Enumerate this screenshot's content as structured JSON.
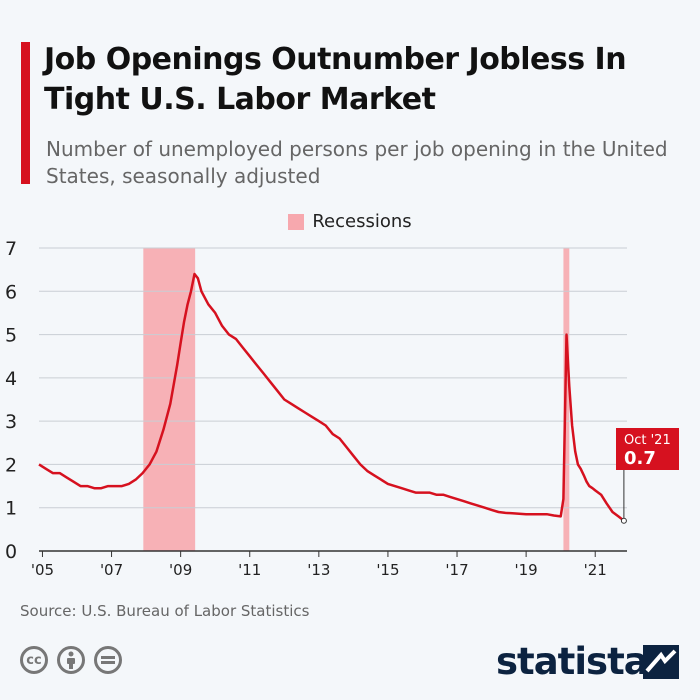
{
  "chart_data": {
    "type": "line",
    "title": "Job Openings Outnumber Jobless In Tight U.S. Labor Market",
    "subtitle": "Number of unemployed persons per job opening in the United States, seasonally adjusted",
    "legend": {
      "label": "Recessions",
      "placement": "top-center"
    },
    "yticks": [
      0,
      1,
      2,
      3,
      4,
      5,
      6,
      7
    ],
    "ylim": [
      0,
      7
    ],
    "xlim": [
      2004.9,
      2021.92
    ],
    "xticks": [
      {
        "value": 2005,
        "label": "'05"
      },
      {
        "value": 2007,
        "label": "'07"
      },
      {
        "value": 2009,
        "label": "'09"
      },
      {
        "value": 2011,
        "label": "'11"
      },
      {
        "value": 2013,
        "label": "'13"
      },
      {
        "value": 2015,
        "label": "'15"
      },
      {
        "value": 2017,
        "label": "'17"
      },
      {
        "value": 2019,
        "label": "'19"
      },
      {
        "value": 2021,
        "label": "'21"
      }
    ],
    "recessions": [
      {
        "start": 2007.92,
        "end": 2009.42
      },
      {
        "start": 2020.08,
        "end": 2020.25
      }
    ],
    "series": [
      {
        "color": "#d6111f",
        "x": [
          2004.9,
          2005.1,
          2005.3,
          2005.5,
          2005.7,
          2005.9,
          2006.1,
          2006.3,
          2006.5,
          2006.7,
          2006.9,
          2007.1,
          2007.3,
          2007.5,
          2007.7,
          2007.9,
          2008.1,
          2008.3,
          2008.5,
          2008.7,
          2008.9,
          2009.0,
          2009.1,
          2009.2,
          2009.3,
          2009.4,
          2009.5,
          2009.6,
          2009.8,
          2010.0,
          2010.2,
          2010.4,
          2010.6,
          2010.8,
          2011.0,
          2011.2,
          2011.4,
          2011.6,
          2011.8,
          2012.0,
          2012.2,
          2012.4,
          2012.6,
          2012.8,
          2013.0,
          2013.2,
          2013.4,
          2013.6,
          2013.8,
          2014.0,
          2014.2,
          2014.4,
          2014.6,
          2014.8,
          2015.0,
          2015.2,
          2015.4,
          2015.6,
          2015.8,
          2016.0,
          2016.2,
          2016.4,
          2016.6,
          2016.8,
          2017.0,
          2017.2,
          2017.4,
          2017.6,
          2017.8,
          2018.0,
          2018.2,
          2018.4,
          2018.6,
          2018.8,
          2019.0,
          2019.2,
          2019.4,
          2019.6,
          2019.8,
          2020.0,
          2020.08,
          2020.17,
          2020.25,
          2020.33,
          2020.42,
          2020.5,
          2020.58,
          2020.67,
          2020.75,
          2020.83,
          2020.92,
          2021.0,
          2021.17,
          2021.33,
          2021.5,
          2021.67,
          2021.83
        ],
        "y": [
          2.0,
          1.9,
          1.8,
          1.8,
          1.7,
          1.6,
          1.5,
          1.5,
          1.45,
          1.45,
          1.5,
          1.5,
          1.5,
          1.55,
          1.65,
          1.8,
          2.0,
          2.3,
          2.8,
          3.4,
          4.3,
          4.8,
          5.3,
          5.7,
          6.0,
          6.4,
          6.3,
          6.0,
          5.7,
          5.5,
          5.2,
          5.0,
          4.9,
          4.7,
          4.5,
          4.3,
          4.1,
          3.9,
          3.7,
          3.5,
          3.4,
          3.3,
          3.2,
          3.1,
          3.0,
          2.9,
          2.7,
          2.6,
          2.4,
          2.2,
          2.0,
          1.85,
          1.75,
          1.65,
          1.55,
          1.5,
          1.45,
          1.4,
          1.35,
          1.35,
          1.35,
          1.3,
          1.3,
          1.25,
          1.2,
          1.15,
          1.1,
          1.05,
          1.0,
          0.95,
          0.9,
          0.88,
          0.87,
          0.86,
          0.85,
          0.85,
          0.85,
          0.85,
          0.82,
          0.8,
          1.2,
          5.0,
          3.8,
          2.9,
          2.3,
          2.0,
          1.9,
          1.75,
          1.6,
          1.5,
          1.45,
          1.4,
          1.3,
          1.1,
          0.9,
          0.8,
          0.7
        ]
      }
    ],
    "annotation": {
      "label": "Oct '21",
      "value": "0.7"
    }
  },
  "source": "Source: U.S. Bureau of Labor Statistics",
  "license_icons": [
    "cc-icon",
    "attribution-icon",
    "no-derivatives-icon"
  ],
  "brand": "statista",
  "colors": {
    "accent": "#d6111f",
    "recession": "#f7a8ae",
    "brand": "#0c2340"
  }
}
